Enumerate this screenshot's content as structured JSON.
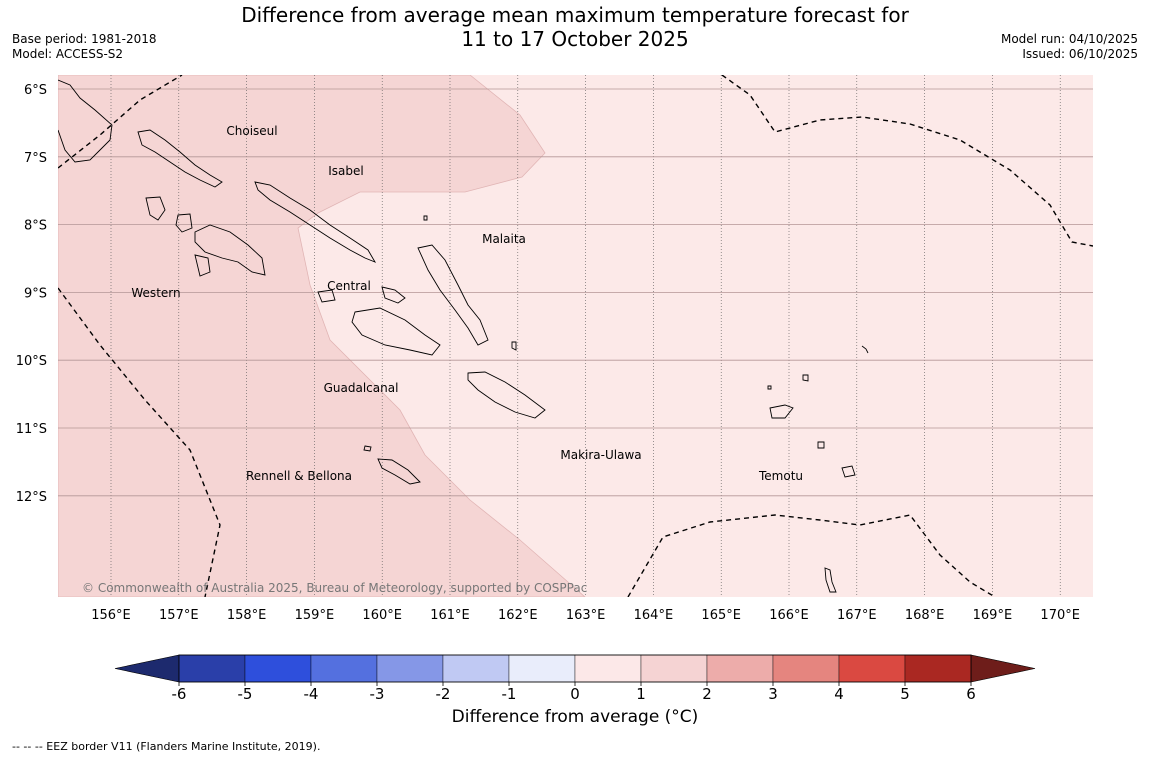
{
  "header": {
    "title_line1": "Difference from average mean maximum temperature forecast for",
    "title_line2": "11 to 17 October 2025",
    "base_period": "Base period: 1981-2018",
    "model": "Model: ACCESS-S2",
    "model_run": "Model run: 04/10/2025",
    "issued": "Issued: 06/10/2025"
  },
  "map": {
    "lat_labels": [
      "6°S",
      "7°S",
      "8°S",
      "9°S",
      "10°S",
      "11°S",
      "12°S"
    ],
    "lon_labels": [
      "156°E",
      "157°E",
      "158°E",
      "159°E",
      "160°E",
      "161°E",
      "162°E",
      "163°E",
      "164°E",
      "165°E",
      "166°E",
      "167°E",
      "168°E",
      "169°E",
      "170°E"
    ],
    "regions": [
      {
        "name": "Choiseul"
      },
      {
        "name": "Isabel"
      },
      {
        "name": "Malaita"
      },
      {
        "name": "Western"
      },
      {
        "name": "Central"
      },
      {
        "name": "Guadalcanal"
      },
      {
        "name": "Makira-Ulawa"
      },
      {
        "name": "Rennell & Bellona"
      },
      {
        "name": "Temotu"
      }
    ],
    "copyright": "© Commonwealth of Australia 2025, Bureau of Meteorology, supported by COSPPac"
  },
  "colorbar": {
    "tick_labels": [
      "-6",
      "-5",
      "-4",
      "-3",
      "-2",
      "-1",
      "0",
      "1",
      "2",
      "3",
      "4",
      "5",
      "6"
    ],
    "colors": [
      "#2a3fa9",
      "#2e4fdc",
      "#5470df",
      "#8597e7",
      "#c0c9f3",
      "#e9edfb",
      "#fce8e8",
      "#f5d3d3",
      "#edacaa",
      "#e5857f",
      "#da4941",
      "#aa2822"
    ],
    "under_color": "#1d2a6e",
    "over_color": "#6e1d1a",
    "label": "Difference from average (°C)"
  },
  "legend": {
    "eez": "--  --  -- EEZ border V11 (Flanders Marine Institute, 2019)."
  }
}
